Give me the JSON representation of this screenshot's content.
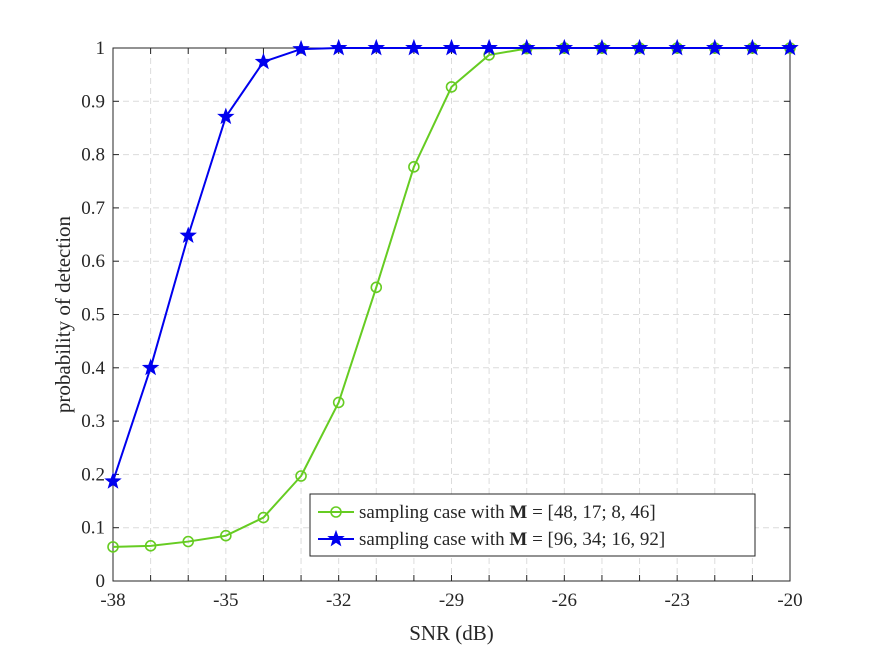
{
  "chart_data": {
    "type": "line",
    "xlabel": "SNR (dB)",
    "ylabel": "probability of detection",
    "xlim": [
      -38,
      -20
    ],
    "ylim": [
      0,
      1
    ],
    "xticks": [
      -38,
      -35,
      -32,
      -29,
      -26,
      -23,
      -20
    ],
    "xtick_labels": [
      "-38",
      "-35",
      "-32",
      "-29",
      "-26",
      "-23",
      "-20"
    ],
    "yticks": [
      0,
      0.1,
      0.2,
      0.3,
      0.4,
      0.5,
      0.6,
      0.7,
      0.8,
      0.9,
      1
    ],
    "ytick_labels": [
      "0",
      "0.1",
      "0.2",
      "0.3",
      "0.4",
      "0.5",
      "0.6",
      "0.7",
      "0.8",
      "0.9",
      "1"
    ],
    "grid": true,
    "legend_position": "bottom-right",
    "x": [
      -38,
      -37,
      -36,
      -35,
      -34,
      -33,
      -32,
      -31,
      -30,
      -29,
      -28,
      -27,
      -26,
      -25,
      -24,
      -23,
      -22,
      -21,
      -20
    ],
    "series": [
      {
        "name": "sampling case with M = [48, 17; 8, 46]",
        "legend_prefix": "sampling case with ",
        "legend_symbol": "M",
        "legend_suffix": " = [48, 17; 8, 46]",
        "color": "#66cc22",
        "marker": "circle",
        "values": [
          0.064,
          0.066,
          0.074,
          0.085,
          0.119,
          0.197,
          0.335,
          0.551,
          0.777,
          0.927,
          0.987,
          0.999,
          1,
          1,
          1,
          1,
          1,
          1,
          1
        ]
      },
      {
        "name": "sampling case with M = [96, 34; 16, 92]",
        "legend_prefix": "sampling case with ",
        "legend_symbol": "M",
        "legend_suffix": " = [96, 34; 16, 92]",
        "color": "#0000ee",
        "marker": "star",
        "values": [
          0.187,
          0.4,
          0.648,
          0.871,
          0.974,
          0.998,
          1,
          1,
          1,
          1,
          1,
          1,
          1,
          1,
          1,
          1,
          1,
          1,
          1
        ]
      }
    ]
  }
}
